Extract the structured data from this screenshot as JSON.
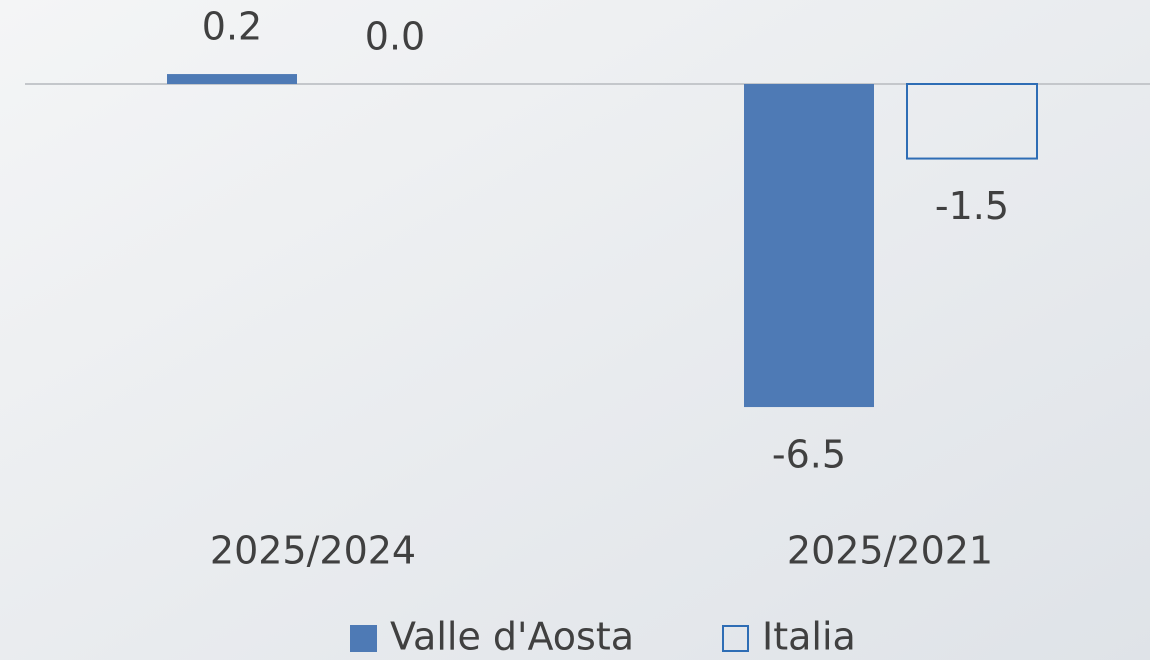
{
  "chart_data": {
    "type": "bar",
    "categories": [
      "2025/2024",
      "2025/2021"
    ],
    "series": [
      {
        "name": "Valle d'Aosta",
        "color": "#4e7ab5",
        "values": [
          0.2,
          -6.5
        ],
        "value_labels": [
          "0.2",
          "-6.5"
        ]
      },
      {
        "name": "Italia",
        "color": "#2e6db5",
        "hollow": true,
        "values": [
          0,
          -1.5
        ],
        "value_labels": [
          "0.0",
          "-1.5"
        ]
      }
    ]
  }
}
